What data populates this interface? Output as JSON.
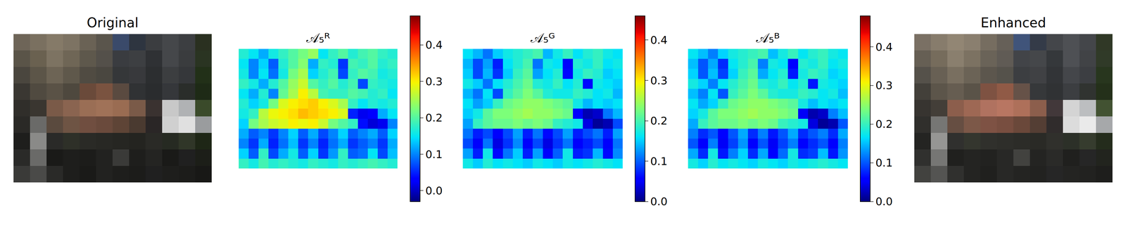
{
  "chart_data": [
    {
      "type": "image",
      "title": "Original",
      "tick_labels": false,
      "pixels": [
        [
          "#6e6558",
          "#7a7060",
          "#857a68",
          "#7d7363",
          "#6a6255",
          "#5a554c",
          "#3a4a6a",
          "#2e3540",
          "#3b3d40",
          "#45474a",
          "#3c3e41",
          "#2a3020"
        ],
        [
          "#5a5448",
          "#6a6150",
          "#7d7362",
          "#6f6656",
          "#5e584c",
          "#54504a",
          "#3a3c40",
          "#3d3f42",
          "#2f3134",
          "#45474a",
          "#3a3c3e",
          "#2a3422"
        ],
        [
          "#4a463e",
          "#5c5548",
          "#6d6455",
          "#5f584b",
          "#504b42",
          "#4a4740",
          "#353739",
          "#38393c",
          "#2c2e30",
          "#3c3e40",
          "#35373a",
          "#223018"
        ],
        [
          "#3a3732",
          "#504a40",
          "#5a5246",
          "#4e483e",
          "#6a4a3a",
          "#7a5340",
          "#5a4a40",
          "#303234",
          "#2a2c2e",
          "#35373a",
          "#2a2d2a",
          "#1e2a16"
        ],
        [
          "#302e2a",
          "#3a3630",
          "#7a5a48",
          "#8a6450",
          "#9a6e55",
          "#a07258",
          "#9a6c52",
          "#7a5a48",
          "#3a3230",
          "#c8c8c8",
          "#b0b2b4",
          "#3a4a2a"
        ],
        [
          "#2a2926",
          "#6a6a68",
          "#5a4a3e",
          "#6e5444",
          "#704e40",
          "#6a4a3c",
          "#5e4436",
          "#4a3a30",
          "#2a2626",
          "#d0d0d0",
          "#e0e0e0",
          "#9a9c9e"
        ],
        [
          "#1e1e1c",
          "#8a8a88",
          "#2a2a28",
          "#2e3028",
          "#2a2a26",
          "#282824",
          "#262622",
          "#242420",
          "#2a2a26",
          "#262a22",
          "#303628",
          "#1e2616"
        ],
        [
          "#2a2a28",
          "#6a6a68",
          "#1a1a18",
          "#1e1e1c",
          "#1c1c1a",
          "#222220",
          "#3a3a38",
          "#1e1e1c",
          "#242422",
          "#1a1a18",
          "#202020",
          "#1c1e18"
        ],
        [
          "#3a3a38",
          "#4a4a48",
          "#2a2a28",
          "#1e1e1c",
          "#1a1a18",
          "#222220",
          "#1e1e1c",
          "#1c1c1a",
          "#202020",
          "#1e1e1c",
          "#1c1c1a",
          "#181816"
        ]
      ]
    },
    {
      "type": "heatmap",
      "title": "𝒜₅ᴿ",
      "tick_labels": false,
      "z": [
        [
          0.17,
          0.15,
          0.12,
          0.16,
          0.18,
          0.2,
          0.22,
          0.24,
          0.15,
          0.18,
          0.2,
          0.17,
          0.19,
          0.2,
          0.18,
          0.17
        ],
        [
          0.15,
          0.1,
          0.14,
          0.08,
          0.17,
          0.2,
          0.23,
          0.12,
          0.18,
          0.17,
          0.06,
          0.19,
          0.18,
          0.2,
          0.17,
          0.18
        ],
        [
          0.16,
          0.1,
          0.15,
          0.09,
          0.16,
          0.22,
          0.25,
          0.14,
          0.17,
          0.19,
          0.07,
          0.18,
          0.2,
          0.19,
          0.16,
          0.17
        ],
        [
          0.18,
          0.16,
          0.12,
          0.17,
          0.2,
          0.24,
          0.27,
          0.2,
          0.18,
          0.2,
          0.17,
          0.19,
          0.07,
          0.18,
          0.17,
          0.16
        ],
        [
          0.15,
          0.12,
          0.17,
          0.1,
          0.21,
          0.25,
          0.3,
          0.26,
          0.19,
          0.18,
          0.18,
          0.2,
          0.19,
          0.17,
          0.18,
          0.15
        ],
        [
          0.17,
          0.14,
          0.16,
          0.22,
          0.28,
          0.3,
          0.31,
          0.32,
          0.3,
          0.28,
          0.25,
          0.18,
          0.15,
          0.17,
          0.16,
          0.17
        ],
        [
          0.16,
          0.18,
          0.26,
          0.29,
          0.3,
          0.31,
          0.33,
          0.32,
          0.31,
          0.3,
          0.28,
          0.05,
          0.02,
          0.03,
          0.12,
          0.15
        ],
        [
          0.14,
          0.22,
          0.25,
          0.27,
          0.28,
          0.3,
          0.29,
          0.3,
          0.27,
          0.22,
          0.2,
          0.18,
          0.04,
          0.01,
          0.02,
          0.1
        ],
        [
          0.12,
          0.08,
          0.1,
          0.06,
          0.1,
          0.14,
          0.08,
          0.12,
          0.07,
          0.1,
          0.14,
          0.08,
          0.1,
          0.12,
          0.08,
          0.14
        ],
        [
          0.1,
          0.06,
          0.12,
          0.05,
          0.09,
          0.13,
          0.06,
          0.1,
          0.05,
          0.09,
          0.12,
          0.06,
          0.08,
          0.1,
          0.06,
          0.12
        ],
        [
          0.14,
          0.08,
          0.18,
          0.07,
          0.12,
          0.16,
          0.08,
          0.14,
          0.06,
          0.11,
          0.18,
          0.08,
          0.09,
          0.15,
          0.07,
          0.13
        ],
        [
          0.18,
          0.16,
          0.19,
          0.17,
          0.18,
          0.17,
          0.16,
          0.18,
          0.17,
          0.16,
          0.18,
          0.17,
          0.18,
          0.19,
          0.18,
          0.17
        ]
      ],
      "colorbar": {
        "range": [
          -0.03,
          0.48
        ],
        "ticks": [
          {
            "value": 0,
            "label": "0.0"
          },
          {
            "value": 0.1,
            "label": "0.1"
          },
          {
            "value": 0.2,
            "label": "0.2"
          },
          {
            "value": 0.3,
            "label": "0.3"
          },
          {
            "value": 0.4,
            "label": "0.4"
          }
        ]
      }
    },
    {
      "type": "heatmap",
      "title": "𝒜₅ᴳ",
      "tick_labels": false,
      "z": [
        [
          0.16,
          0.14,
          0.11,
          0.15,
          0.17,
          0.18,
          0.19,
          0.2,
          0.14,
          0.17,
          0.19,
          0.16,
          0.18,
          0.19,
          0.17,
          0.16
        ],
        [
          0.14,
          0.09,
          0.13,
          0.07,
          0.16,
          0.18,
          0.2,
          0.11,
          0.17,
          0.16,
          0.05,
          0.18,
          0.17,
          0.19,
          0.16,
          0.17
        ],
        [
          0.15,
          0.09,
          0.14,
          0.08,
          0.15,
          0.19,
          0.21,
          0.13,
          0.16,
          0.18,
          0.06,
          0.17,
          0.19,
          0.18,
          0.15,
          0.16
        ],
        [
          0.17,
          0.15,
          0.11,
          0.16,
          0.18,
          0.2,
          0.22,
          0.18,
          0.17,
          0.19,
          0.16,
          0.18,
          0.06,
          0.17,
          0.16,
          0.15
        ],
        [
          0.14,
          0.11,
          0.16,
          0.09,
          0.19,
          0.21,
          0.23,
          0.21,
          0.18,
          0.17,
          0.17,
          0.19,
          0.18,
          0.16,
          0.17,
          0.14
        ],
        [
          0.16,
          0.13,
          0.15,
          0.19,
          0.22,
          0.23,
          0.24,
          0.24,
          0.23,
          0.22,
          0.21,
          0.17,
          0.14,
          0.16,
          0.15,
          0.16
        ],
        [
          0.15,
          0.17,
          0.21,
          0.23,
          0.23,
          0.24,
          0.25,
          0.24,
          0.24,
          0.23,
          0.22,
          0.05,
          0.02,
          0.03,
          0.11,
          0.14
        ],
        [
          0.13,
          0.19,
          0.21,
          0.22,
          0.22,
          0.23,
          0.22,
          0.23,
          0.22,
          0.19,
          0.18,
          0.17,
          0.04,
          0.01,
          0.02,
          0.09
        ],
        [
          0.11,
          0.07,
          0.09,
          0.05,
          0.09,
          0.13,
          0.07,
          0.11,
          0.06,
          0.09,
          0.13,
          0.07,
          0.09,
          0.11,
          0.07,
          0.13
        ],
        [
          0.09,
          0.05,
          0.11,
          0.04,
          0.08,
          0.12,
          0.05,
          0.09,
          0.04,
          0.08,
          0.11,
          0.05,
          0.07,
          0.09,
          0.05,
          0.11
        ],
        [
          0.13,
          0.07,
          0.17,
          0.06,
          0.11,
          0.15,
          0.07,
          0.13,
          0.05,
          0.1,
          0.17,
          0.07,
          0.08,
          0.14,
          0.06,
          0.12
        ],
        [
          0.17,
          0.15,
          0.18,
          0.16,
          0.17,
          0.16,
          0.15,
          0.17,
          0.16,
          0.15,
          0.17,
          0.16,
          0.17,
          0.18,
          0.17,
          0.16
        ]
      ],
      "colorbar": {
        "range": [
          0,
          0.46
        ],
        "ticks": [
          {
            "value": 0,
            "label": "0.0"
          },
          {
            "value": 0.1,
            "label": "0.1"
          },
          {
            "value": 0.2,
            "label": "0.2"
          },
          {
            "value": 0.3,
            "label": "0.3"
          },
          {
            "value": 0.4,
            "label": "0.4"
          }
        ]
      }
    },
    {
      "type": "heatmap",
      "title": "𝒜₅ᴮ",
      "tick_labels": false,
      "z": [
        [
          0.17,
          0.15,
          0.12,
          0.16,
          0.18,
          0.19,
          0.2,
          0.21,
          0.15,
          0.18,
          0.2,
          0.17,
          0.19,
          0.2,
          0.18,
          0.17
        ],
        [
          0.15,
          0.1,
          0.14,
          0.08,
          0.17,
          0.19,
          0.21,
          0.12,
          0.18,
          0.17,
          0.06,
          0.19,
          0.18,
          0.2,
          0.17,
          0.18
        ],
        [
          0.16,
          0.1,
          0.15,
          0.09,
          0.16,
          0.2,
          0.22,
          0.14,
          0.17,
          0.19,
          0.07,
          0.18,
          0.2,
          0.19,
          0.16,
          0.17
        ],
        [
          0.18,
          0.16,
          0.12,
          0.17,
          0.19,
          0.21,
          0.23,
          0.19,
          0.18,
          0.2,
          0.17,
          0.19,
          0.07,
          0.18,
          0.17,
          0.16
        ],
        [
          0.15,
          0.12,
          0.17,
          0.1,
          0.2,
          0.22,
          0.24,
          0.22,
          0.19,
          0.18,
          0.18,
          0.2,
          0.19,
          0.17,
          0.18,
          0.15
        ],
        [
          0.17,
          0.14,
          0.16,
          0.2,
          0.23,
          0.24,
          0.25,
          0.25,
          0.24,
          0.23,
          0.22,
          0.18,
          0.15,
          0.17,
          0.16,
          0.17
        ],
        [
          0.16,
          0.18,
          0.22,
          0.24,
          0.24,
          0.25,
          0.26,
          0.25,
          0.25,
          0.24,
          0.23,
          0.05,
          0.02,
          0.03,
          0.12,
          0.15
        ],
        [
          0.14,
          0.2,
          0.22,
          0.23,
          0.23,
          0.24,
          0.23,
          0.24,
          0.23,
          0.2,
          0.19,
          0.18,
          0.04,
          0.01,
          0.02,
          0.1
        ],
        [
          0.12,
          0.08,
          0.1,
          0.06,
          0.1,
          0.14,
          0.08,
          0.12,
          0.07,
          0.1,
          0.14,
          0.08,
          0.1,
          0.12,
          0.08,
          0.14
        ],
        [
          0.1,
          0.06,
          0.12,
          0.05,
          0.09,
          0.13,
          0.06,
          0.1,
          0.05,
          0.09,
          0.12,
          0.06,
          0.08,
          0.1,
          0.06,
          0.12
        ],
        [
          0.14,
          0.08,
          0.18,
          0.07,
          0.12,
          0.16,
          0.08,
          0.14,
          0.06,
          0.11,
          0.18,
          0.08,
          0.09,
          0.15,
          0.07,
          0.13
        ],
        [
          0.18,
          0.16,
          0.19,
          0.17,
          0.18,
          0.17,
          0.16,
          0.18,
          0.17,
          0.16,
          0.18,
          0.17,
          0.18,
          0.19,
          0.18,
          0.17
        ]
      ],
      "colorbar": {
        "range": [
          0,
          0.48
        ],
        "ticks": [
          {
            "value": 0,
            "label": "0.0"
          },
          {
            "value": 0.1,
            "label": "0.1"
          },
          {
            "value": 0.2,
            "label": "0.2"
          },
          {
            "value": 0.3,
            "label": "0.3"
          },
          {
            "value": 0.4,
            "label": "0.4"
          }
        ]
      }
    },
    {
      "type": "image",
      "title": "Enhanced",
      "tick_labels": false,
      "pixels": [
        [
          "#7a7064",
          "#877c6c",
          "#928674",
          "#8a7f6f",
          "#766d60",
          "#666058",
          "#40547a",
          "#343b48",
          "#44464a",
          "#4e5054",
          "#44464a",
          "#303826"
        ],
        [
          "#665f54",
          "#766c5c",
          "#8a7f6e",
          "#7c7262",
          "#6a6358",
          "#605b55",
          "#424448",
          "#45474a",
          "#35383b",
          "#4e5054",
          "#414346",
          "#303a28"
        ],
        [
          "#55514a",
          "#686054",
          "#796f60",
          "#6b6356",
          "#5c564d",
          "#55524b",
          "#3c3e41",
          "#404144",
          "#323437",
          "#44464a",
          "#3c3e42",
          "#28361e"
        ],
        [
          "#43403a",
          "#5c554a",
          "#665d51",
          "#5a5348",
          "#7e5242",
          "#905a46",
          "#665248",
          "#36383a",
          "#303234",
          "#3c3e41",
          "#303330",
          "#24301a"
        ],
        [
          "#373430",
          "#433e38",
          "#8c5e4c",
          "#9e6854",
          "#b07260",
          "#b87662",
          "#ae705a",
          "#8c5e4c",
          "#42383a",
          "#d4d4d4",
          "#bcbec0",
          "#425232"
        ],
        [
          "#302f2c",
          "#767674",
          "#664e42",
          "#7c5848",
          "#7e5244",
          "#784e40",
          "#6a483a",
          "#543e34",
          "#302c2c",
          "#dcdcdc",
          "#eaeaea",
          "#a6a8aa"
        ],
        [
          "#242422",
          "#969694",
          "#30302e",
          "#34362e",
          "#30302c",
          "#2e2e2a",
          "#2c2c28",
          "#2a2a26",
          "#30302c",
          "#2c3028",
          "#363c2e",
          "#242c1c"
        ],
        [
          "#30302e",
          "#767674",
          "#20201e",
          "#242422",
          "#222220",
          "#282826",
          "#42423f",
          "#242422",
          "#2a2a28",
          "#20201e",
          "#262626",
          "#22241e"
        ],
        [
          "#42423f",
          "#545452",
          "#30302e",
          "#242422",
          "#20201e",
          "#282826",
          "#242422",
          "#222220",
          "#262626",
          "#242422",
          "#222220",
          "#1e1e1c"
        ]
      ]
    }
  ]
}
